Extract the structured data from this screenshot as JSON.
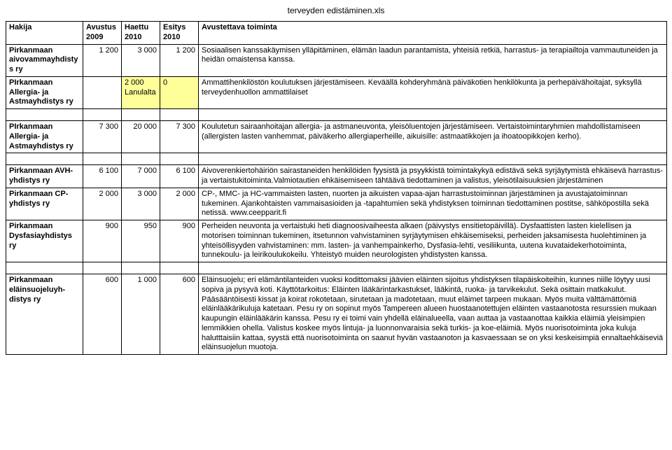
{
  "title": "terveyden edistäminen.xls",
  "headers": {
    "hakija": "Hakija",
    "avustus": "Avustus 2009",
    "haettu": "Haettu 2010",
    "esitys": "Esitys 2010",
    "toiminta": "Avustettava toiminta"
  },
  "rows": [
    {
      "applicant": "Pirkanmaan aivovammayhdistys ry",
      "avustus": "1 200",
      "haettu": "3 000",
      "esitys": "1 200",
      "desc": "Sosiaalisen kanssakäymisen ylläpitäminen, elämän laadun parantamista, yhteisiä retkiä, harrastus- ja terapiailtoja vammautuneiden ja heidän omaistensa kanssa.",
      "highlight": false
    },
    {
      "applicant": "PIrkanmaan Allergia- ja Astmayhdistys ry",
      "avustus": "",
      "haettu": "2 000 Lanulalta",
      "esitys": "0",
      "desc": "Ammattihenkilöstön koulutuksen järjestämiseen. Keväällä kohderyhmänä päiväkotien henkilökunta ja perhepäivähoitajat, syksyllä terveydenhuollon ammattilaiset",
      "highlight": true
    },
    {
      "applicant": "PIrkanmaan Allergia- ja Astmayhdistys ry",
      "avustus": "7 300",
      "haettu": "20 000",
      "esitys": "7 300",
      "desc": "Koulutetun sairaanhoitajan allergia- ja astmaneuvonta, yleisöluentojen järjestämiseen. Vertaistoimintaryhmien mahdollistamiseen (allergisten lasten vanhemmat, päiväkerho allergiaperheille, aikuisille: astmaatikkojen ja ihoatoopikkojen kerho).",
      "highlight": false,
      "gapBefore": true
    },
    {
      "applicant": "Pirkanmaan AVH-yhdistys ry",
      "avustus": "6 100",
      "haettu": "7 000",
      "esitys": "6 100",
      "desc": "Aivoverenkiertohäiriön sairastaneiden henkilöiden fyysistä ja psyykkistä toimintakykyä edistävä sekä syrjäytymistä ehkäisevä harrastus- ja vertaistukitoiminta.Valmiotautien ehkäisemiseen tähtäävä tiedottaminen ja valistus, yleisötilaisuuksien järjestäminen",
      "highlight": false,
      "gapBefore": true
    },
    {
      "applicant": "Pirkanmaan CP-yhdistys ry",
      "avustus": "2 000",
      "haettu": "3 000",
      "esitys": "2 000",
      "desc": "CP-, MMC- ja HC-vammaisten lasten, nuorten ja aikuisten vapaa-ajan harrastustoiminnan järjestäminen ja avustajatoiminnan tukeminen. Ajankohtaisten vammaisasioiden ja -tapahtumien sekä yhdistyksen toiminnan tiedottaminen postitse, sähköpostilla sekä netissä. www.ceepparit.fi",
      "highlight": false
    },
    {
      "applicant": "Pirkanmaan Dysfasiayhdistys ry",
      "avustus": "900",
      "haettu": "950",
      "esitys": "900",
      "desc": "Perheiden neuvonta ja vertaistuki heti diagnoosivaiheesta alkaen (päivystys ensitietopäivillä). Dysfaattisten lasten kielellisen ja motorisen toiminnan tukeminen, itsetunnon vahvistaminen syrjäytymisen ehkäisemiseksi, perheiden jaksamisesta huolehtiminen ja yhteisöllisyyden vahvistaminen: mm. lasten- ja vanhempainkerho, Dysfasia-lehti, vesiliikunta, uutena kuvataidekerhotoiminta, tunnekoulu- ja leirikoulukokeilu. Yhteistyö muiden neurologisten yhdistysten kanssa.",
      "highlight": false
    },
    {
      "applicant": "Pirkanmaan eläinsuojeluyh-distys ry",
      "avustus": "600",
      "haettu": "1 000",
      "esitys": "600",
      "desc": "Eläinsuojelu; eri elämäntilanteiden vuoksi kodittomaksi jäävien eläinten sijoitus yhdistyksen tilapäiskoiteihin, kunnes niille löytyy uusi sopiva ja pysyvä koti. Käyttötarkoitus: Eläinten lääkärintarkastukset, lääkintä, ruoka- ja tarvikekulut. Sekä osittain matkakulut. Pääsääntöisesti kissat ja koirat rokotetaan, sirutetaan ja madotetaan, muut eläimet tarpeen mukaan. Myös muita välttämättömiä eläinlääkärikuluja katetaan.  Pesu ry on sopinut myös Tampereen alueen huostaanotettujen eläinten vastaanotosta resurssien mukaan kaupungin eläinlääkärin kanssa.  Pesu ry ei toimi vain yhdellä eläinalueella, vaan auttaa ja vastaanottaa kaikkia eläimiä yleisimpien lemmikkien ohella. Valistus koskee myös lintuja- ja luonnonvaraisia sekä turkis- ja koe-eläimiä. Myös nuorisotoiminta joka kuluja halutttaisiin kattaa, syystä että nuorisotoiminta on saanut hyvän vastaanoton ja kasvaessaan se on yksi keskeisimpiä ennaltaehkäiseviä eläinsuojelun muotoja.",
      "highlight": false,
      "gapBefore": true
    }
  ]
}
